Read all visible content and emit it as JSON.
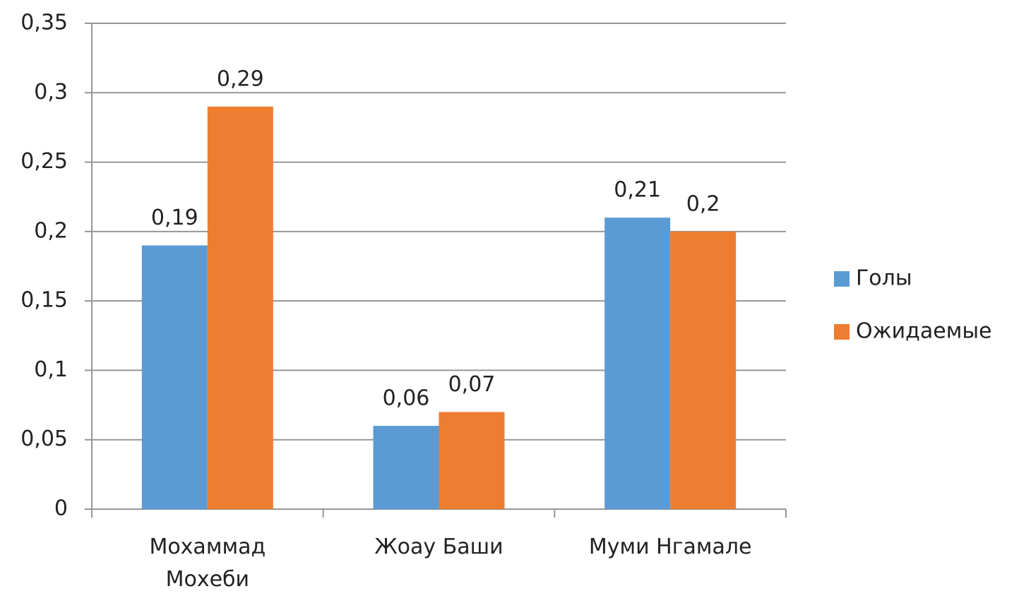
{
  "chart_data": {
    "type": "bar",
    "categories": [
      "Мохаммад\nМохеби",
      "Жоау Баши",
      "Муми Нгамале"
    ],
    "series": [
      {
        "name": "Голы",
        "color": "#5b9bd5",
        "values": [
          0.19,
          0.06,
          0.21
        ],
        "value_labels": [
          "0,19",
          "0,06",
          "0,21"
        ]
      },
      {
        "name": "Ожидаемые",
        "color": "#ed7d31",
        "values": [
          0.29,
          0.07,
          0.2
        ],
        "value_labels": [
          "0,29",
          "0,07",
          "0,2"
        ]
      }
    ],
    "ylim": [
      0,
      0.35
    ],
    "yticks": [
      0,
      {
        "value": 0.05,
        "label": "0,05"
      },
      {
        "value": 0.1,
        "label": "0,1"
      },
      {
        "value": 0.15,
        "label": "0,15"
      },
      {
        "value": 0.2,
        "label": "0,2"
      },
      {
        "value": 0.25,
        "label": "0,25"
      },
      {
        "value": 0.3,
        "label": "0,3"
      },
      {
        "value": 0.35,
        "label": "0,35"
      }
    ],
    "grid": true,
    "legend": "right"
  }
}
